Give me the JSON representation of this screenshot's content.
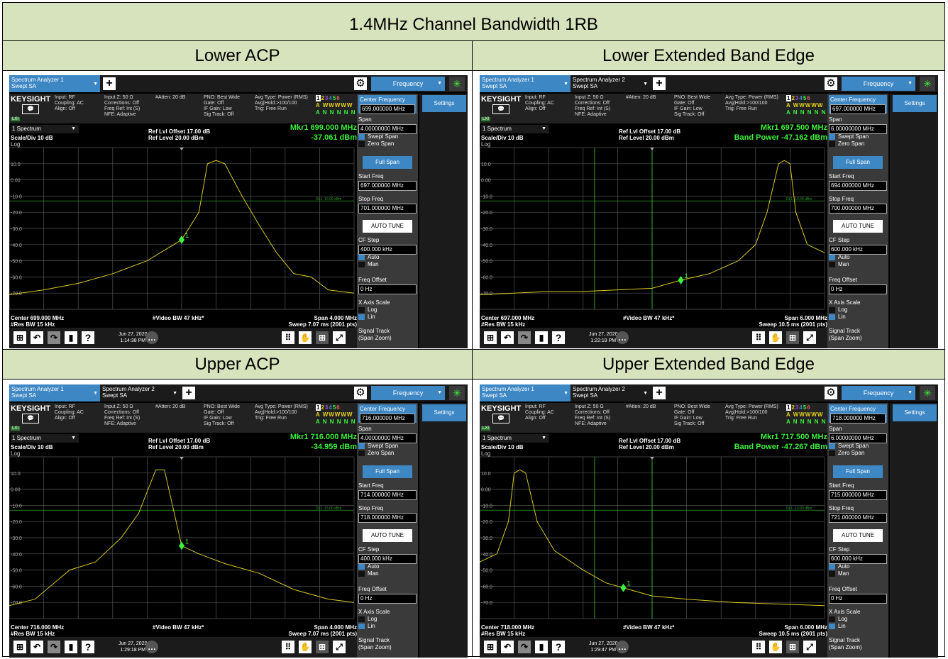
{
  "title": "1.4MHz Channel Bandwidth 1RB",
  "common": {
    "brand": "KEYSIGHT",
    "lxi": "LXI",
    "tab1": "Spectrum Analyzer 1\nSwept SA",
    "tab2": "Spectrum Analyzer 2\nSwept SA",
    "menu": "Frequency",
    "settings": "Settings",
    "col1": "Input: RF\nCoupling: AC\nAlign: Off",
    "col2": "Input Z: 50 Ω\nCorrections: Off\nFreq Ref: Int (S)\nNFE: Adaptive",
    "col3": "#Atten: 20 dB",
    "col4": "PNO: Best Wide\nGate: Off\nIF Gain: Low\nSig Track: Off",
    "col5": "Avg Type: Power (RMS)\nAvg|Hold:>100/100\nTrig: Free Run",
    "trace_nums": [
      "1",
      "2",
      "3",
      "4",
      "5",
      "6"
    ],
    "trace_row2": "A WWWWW",
    "trace_row3": "A N N N N N",
    "spectrum": "1 Spectrum",
    "scale": "Scale/Div 10 dB",
    "log": "Log",
    "ref_offset": "Ref Lvl Offset 17.00 dB",
    "ref_level": "Ref Level 20.00 dBm",
    "res_bw": "#Res BW 15 kHz",
    "video_bw": "#Video BW 47 kHz*",
    "dl_label": "DL1 -13.00 dBm",
    "y_ticks": [
      "10.0",
      "0.00",
      "-10.0",
      "-20.0",
      "-30.0",
      "-40.0",
      "-50.0",
      "-60.0",
      "-70.0"
    ],
    "date": "Jun 27, 2020",
    "marker_num": "1",
    "sb": {
      "center_label": "Center Frequency",
      "span_label": "Span",
      "swept": "Swept Span",
      "zero": "Zero Span",
      "full": "Full Span",
      "start_label": "Start Freq",
      "stop_label": "Stop Freq",
      "autotune": "AUTO TUNE",
      "cfstep_label": "CF Step",
      "auto": "Auto",
      "man": "Man",
      "offset_label": "Freq Offset",
      "offset_val": "0 Hz",
      "xaxis_label": "X Axis Scale",
      "log": "Log",
      "lin": "Lin",
      "sigtrack": "Signal Track",
      "sigtrack2": "(Span Zoom)"
    }
  },
  "panels": [
    {
      "header": "Lower ACP",
      "tab_count": 1,
      "center_val": "699.000000 MHz",
      "span_val": "4.00000000 MHz",
      "start_val": "697.000000 MHz",
      "stop_val": "701.000000 MHz",
      "cfstep_val": "400.000 kHz",
      "mkr_line1": "Mkr1  699.000 MHz",
      "mkr_line2": "-37.061 dBm",
      "center_text": "Center 699.000 MHz",
      "span_text": "Span 4.000 MHz",
      "sweep_text": "Sweep 7.07 ms (2001 pts)",
      "time": "1:14:38 PM",
      "chart_data": {
        "type": "line",
        "x_range_mhz": [
          697.0,
          701.0
        ],
        "ylim": [
          -80,
          20
        ],
        "x": [
          697.0,
          697.4,
          697.8,
          698.2,
          698.6,
          699.0,
          699.2,
          699.3,
          699.4,
          699.5,
          699.7,
          699.9,
          700.1,
          700.3,
          700.5,
          700.7,
          701.0
        ],
        "values": [
          -71,
          -68,
          -64,
          -58,
          -50,
          -37,
          -20,
          10,
          12,
          10,
          -10,
          -28,
          -45,
          -58,
          -60,
          -68,
          -70
        ]
      }
    },
    {
      "header": "Lower Extended Band Edge",
      "tab_count": 2,
      "center_val": "697.000000 MHz",
      "span_val": "6.00000000 MHz",
      "start_val": "694.000000 MHz",
      "stop_val": "700.000000 MHz",
      "cfstep_val": "600.000 kHz",
      "mkr_line1": "Mkr1  697.500 MHz",
      "mkr_line2": "Band Power  -47.162 dBm",
      "center_text": "Center 697.000 MHz",
      "span_text": "Span 6.000 MHz",
      "sweep_text": "Sweep 10.5 ms (2001 pts)",
      "time": "1:22:19 PM",
      "chart_data": {
        "type": "line",
        "x_range_mhz": [
          694.0,
          700.0
        ],
        "ylim": [
          -80,
          20
        ],
        "x": [
          694.0,
          694.6,
          695.2,
          695.8,
          696.4,
          697.0,
          697.5,
          698.0,
          698.5,
          698.8,
          699.0,
          699.2,
          699.3,
          699.4,
          699.5,
          699.7,
          700.0
        ],
        "values": [
          -71,
          -70,
          -69,
          -69,
          -68,
          -67,
          -62,
          -58,
          -50,
          -40,
          -20,
          10,
          12,
          10,
          -20,
          -40,
          -45
        ]
      }
    },
    {
      "header": "Upper ACP",
      "tab_count": 2,
      "center_val": "716.000000 MHz",
      "span_val": "4.00000000 MHz",
      "start_val": "714.000000 MHz",
      "stop_val": "718.000000 MHz",
      "cfstep_val": "400.000 kHz",
      "mkr_line1": "Mkr1  716.000 MHz",
      "mkr_line2": "-34.959 dBm",
      "center_text": "Center 716.000 MHz",
      "span_text": "Span 4.000 MHz",
      "sweep_text": "Sweep 7.07 ms (2001 pts)",
      "time": "1:29:18 PM",
      "chart_data": {
        "type": "line",
        "x_range_mhz": [
          714.0,
          718.0
        ],
        "ylim": [
          -80,
          20
        ],
        "x": [
          714.0,
          714.3,
          714.7,
          715.0,
          715.3,
          715.5,
          715.7,
          715.8,
          716.0,
          716.2,
          716.5,
          716.9,
          717.3,
          717.7,
          718.0
        ],
        "values": [
          -72,
          -68,
          -50,
          -45,
          -30,
          -15,
          12,
          12,
          -35,
          -40,
          -46,
          -52,
          -62,
          -68,
          -70
        ]
      }
    },
    {
      "header": "Upper Extended Band Edge",
      "tab_count": 2,
      "center_val": "718.000000 MHz",
      "span_val": "6.00000000 MHz",
      "start_val": "715.000000 MHz",
      "stop_val": "721.000000 MHz",
      "cfstep_val": "600.000 kHz",
      "mkr_line1": "Mkr1  717.500 MHz",
      "mkr_line2": "Band Power  -47.267 dBm",
      "center_text": "Center 718.000 MHz",
      "span_text": "Span 6.000 MHz",
      "sweep_text": "Sweep 10.5 ms (2001 pts)",
      "time": "1:29:47 PM",
      "chart_data": {
        "type": "line",
        "x_range_mhz": [
          715.0,
          721.0
        ],
        "ylim": [
          -80,
          20
        ],
        "x": [
          715.0,
          715.3,
          715.5,
          715.6,
          715.7,
          715.8,
          716.0,
          716.3,
          716.8,
          717.2,
          717.6,
          718.0,
          718.6,
          719.4,
          720.2,
          721.0
        ],
        "values": [
          -45,
          -40,
          -20,
          10,
          12,
          10,
          -20,
          -38,
          -50,
          -58,
          -62,
          -66,
          -68,
          -70,
          -71,
          -72
        ]
      }
    }
  ]
}
